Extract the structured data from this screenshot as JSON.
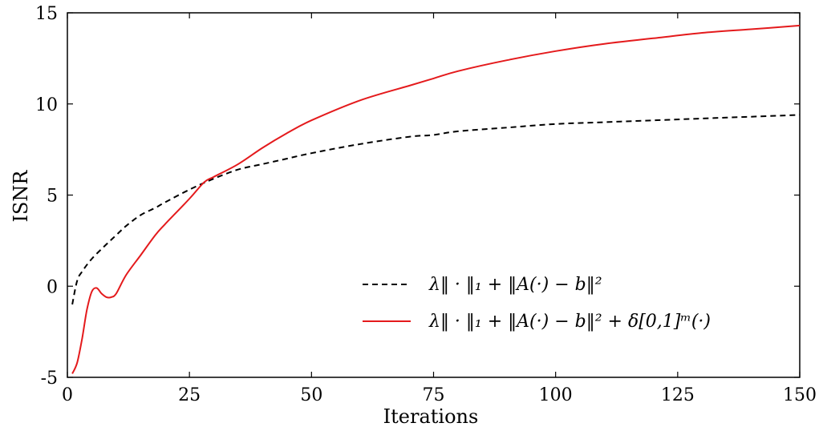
{
  "chart_data": {
    "type": "line",
    "title": "",
    "xlabel": "Iterations",
    "ylabel": "ISNR",
    "xlim": [
      0,
      150
    ],
    "ylim": [
      -5,
      15
    ],
    "x_ticks": [
      "0",
      "25",
      "50",
      "75",
      "100",
      "125",
      "150"
    ],
    "y_ticks": [
      "-5",
      "0",
      "5",
      "10",
      "15"
    ],
    "grid": false,
    "legend_position": "bottom-right",
    "series": [
      {
        "name": "λ‖ · ‖₁ + ‖A(·) − b‖²",
        "style": "dashed",
        "color": "#000000",
        "x": [
          1,
          2,
          3,
          5,
          8,
          10,
          12,
          15,
          18,
          20,
          25,
          30,
          35,
          40,
          45,
          50,
          60,
          70,
          75,
          80,
          90,
          100,
          110,
          120,
          130,
          140,
          150
        ],
        "y": [
          -1.0,
          0.3,
          0.8,
          1.5,
          2.3,
          2.8,
          3.3,
          3.9,
          4.3,
          4.6,
          5.3,
          5.9,
          6.4,
          6.7,
          7.0,
          7.3,
          7.8,
          8.2,
          8.3,
          8.5,
          8.7,
          8.9,
          9.0,
          9.1,
          9.2,
          9.3,
          9.4
        ]
      },
      {
        "name": "λ‖ · ‖₁ + ‖A(·) − b‖² + δ[0,1]ᵐ(·)",
        "style": "solid",
        "color": "#e41a1c",
        "x": [
          1,
          2,
          3,
          4,
          5,
          6,
          7,
          8,
          9,
          10,
          12,
          15,
          18,
          20,
          25,
          28,
          30,
          35,
          40,
          45,
          50,
          60,
          70,
          75,
          80,
          90,
          100,
          110,
          120,
          130,
          140,
          150
        ],
        "y": [
          -4.8,
          -4.2,
          -2.9,
          -1.3,
          -0.3,
          -0.1,
          -0.4,
          -0.6,
          -0.6,
          -0.4,
          0.6,
          1.7,
          2.8,
          3.4,
          4.8,
          5.7,
          6.0,
          6.7,
          7.6,
          8.4,
          9.1,
          10.2,
          11.0,
          11.4,
          11.8,
          12.4,
          12.9,
          13.3,
          13.6,
          13.9,
          14.1,
          14.3
        ]
      }
    ]
  }
}
